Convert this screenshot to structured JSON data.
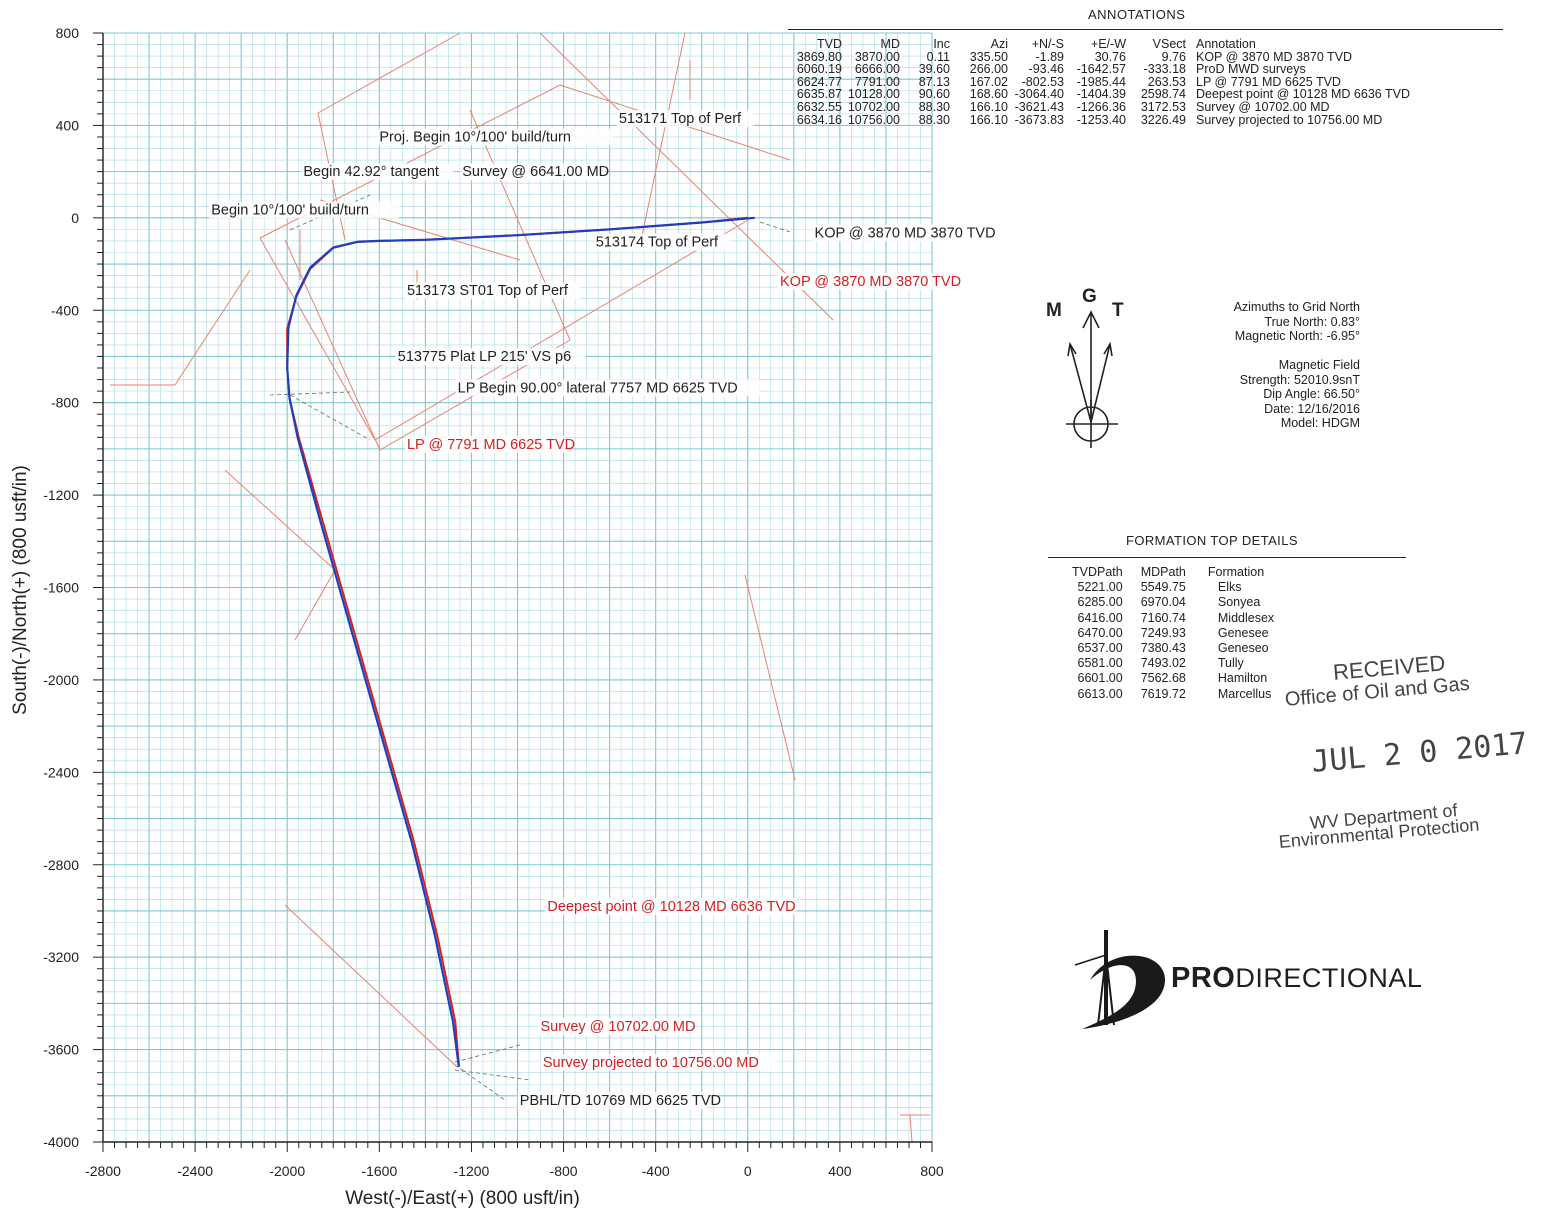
{
  "chart_data": {
    "type": "line",
    "title": "",
    "xlabel": "West(-)/East(+) (800 usft/in)",
    "ylabel": "South(-)/North(+) (800 usft/in)",
    "xlim": [
      -2800,
      800
    ],
    "ylim": [
      -4000,
      800
    ],
    "xticks": [
      -2800,
      -2400,
      -2000,
      -1600,
      -1200,
      -800,
      -400,
      0,
      400,
      800
    ],
    "yticks": [
      800,
      400,
      0,
      -400,
      -800,
      -1200,
      -1600,
      -2000,
      -2400,
      -2800,
      -3200,
      -3600,
      -4000
    ],
    "grid": true,
    "series": [
      {
        "color": "#d42020",
        "x": [
          0,
          -200,
          -600,
          -1000,
          -1400,
          -1600,
          -1700,
          -1800,
          -1900,
          -1960,
          -2000,
          -2000,
          -1990,
          -1950,
          -1850,
          -1750,
          -1650,
          -1550,
          -1450,
          -1350,
          -1270,
          -1254
        ],
        "y": [
          0,
          -20,
          -50,
          -75,
          -95,
          -100,
          -105,
          -130,
          -220,
          -340,
          -480,
          -650,
          -780,
          -950,
          -1300,
          -1650,
          -2000,
          -2350,
          -2700,
          -3100,
          -3480,
          -3674
        ]
      },
      {
        "color": "#1f3fbf",
        "x": [
          30,
          -200,
          -600,
          -1000,
          -1400,
          -1600,
          -1690,
          -1800,
          -1900,
          -1960,
          -1995,
          -2000,
          -1990,
          -1955,
          -1860,
          -1760,
          -1660,
          -1560,
          -1460,
          -1360,
          -1280,
          -1255
        ],
        "y": [
          0,
          -20,
          -50,
          -75,
          -95,
          -100,
          -103,
          -128,
          -215,
          -335,
          -475,
          -650,
          -780,
          -950,
          -1300,
          -1650,
          -2000,
          -2350,
          -2700,
          -3100,
          -3480,
          -3674
        ]
      }
    ],
    "annotations": [
      {
        "text": "Proj. Begin 10°/100' build/turn",
        "x": -1600,
        "y": 330,
        "color": "#222222"
      },
      {
        "text": "Begin 42.92° tangent",
        "x": -1930,
        "y": 180,
        "color": "#222222"
      },
      {
        "text": "Survey @ 6641.00 MD",
        "x": -1240,
        "y": 180,
        "color": "#222222"
      },
      {
        "text": "Begin 10°/100' build/turn",
        "x": -2330,
        "y": 15,
        "color": "#222222"
      },
      {
        "text": "513171 Top of Perf",
        "x": -560,
        "y": 410,
        "color": "#222222"
      },
      {
        "text": "513174 Top of Perf",
        "x": -660,
        "y": -125,
        "color": "#222222"
      },
      {
        "text": "KOP @ 3870 MD 3870 TVD",
        "x": 290,
        "y": -85,
        "color": "#222222"
      },
      {
        "text": "KOP @ 3870 MD 3870 TVD",
        "x": 140,
        "y": -295,
        "color": "#d42020"
      },
      {
        "text": "513173 ST01 Top of Perf",
        "x": -1480,
        "y": -335,
        "color": "#222222"
      },
      {
        "text": "513775 Plat LP 215' VS p6",
        "x": -1520,
        "y": -620,
        "color": "#222222"
      },
      {
        "text": "LP Begin 90.00° lateral 7757 MD 6625 TVD",
        "x": -1260,
        "y": -755,
        "color": "#222222"
      },
      {
        "text": "LP @ 7791 MD 6625 TVD",
        "x": -1480,
        "y": -1000,
        "color": "#d42020"
      },
      {
        "text": "Deepest point @ 10128 MD 6636 TVD",
        "x": -870,
        "y": -3000,
        "color": "#d42020"
      },
      {
        "text": "Survey @ 10702.00 MD",
        "x": -900,
        "y": -3520,
        "color": "#d42020"
      },
      {
        "text": "Survey projected to 10756.00 MD",
        "x": -890,
        "y": -3675,
        "color": "#d42020"
      },
      {
        "text": "PBHL/TD 10769 MD 6625 TVD",
        "x": -990,
        "y": -3840,
        "color": "#222222"
      }
    ]
  },
  "annotations_table": {
    "title": "ANNOTATIONS",
    "headers": [
      "TVD",
      "MD",
      "Inc",
      "Azi",
      "+N/-S",
      "+E/-W",
      "VSect",
      "Annotation"
    ],
    "rows": [
      [
        "3869.80",
        "3870.00",
        "0.11",
        "335.50",
        "-1.89",
        "30.76",
        "9.76",
        "KOP @ 3870 MD 3870 TVD"
      ],
      [
        "6060.19",
        "6666.00",
        "39.60",
        "266.00",
        "-93.46",
        "-1642.57",
        "-333.18",
        "ProD MWD surveys"
      ],
      [
        "6624.77",
        "7791.00",
        "87.13",
        "167.02",
        "-802.53",
        "-1985.44",
        "263.53",
        "LP @ 7791 MD 6625 TVD"
      ],
      [
        "6635.87",
        "10128.00",
        "90.60",
        "168.60",
        "-3064.40",
        "-1404.39",
        "2598.74",
        "Deepest point @ 10128 MD 6636 TVD"
      ],
      [
        "6632.55",
        "10702.00",
        "88.30",
        "166.10",
        "-3621.43",
        "-1266.36",
        "3172.53",
        "Survey @ 10702.00 MD"
      ],
      [
        "6634.16",
        "10756.00",
        "88.30",
        "166.10",
        "-3673.83",
        "-1253.40",
        "3226.49",
        "Survey projected to 10756.00 MD"
      ]
    ]
  },
  "north_info": {
    "lines": [
      "Azimuths to Grid North",
      "True North: 0.83°",
      "Magnetic North: -6.95°",
      "",
      "Magnetic Field",
      "Strength: 52010.9snT",
      "Dip Angle: 66.50°",
      "Date: 12/16/2016",
      "Model: HDGM"
    ],
    "compass_labels": {
      "m": "M",
      "g": "G",
      "t": "T"
    }
  },
  "formation_table": {
    "title": "FORMATION TOP DETAILS",
    "headers": [
      "TVDPath",
      "MDPath",
      "Formation"
    ],
    "rows": [
      [
        "5221.00",
        "5549.75",
        "Elks"
      ],
      [
        "6285.00",
        "6970.04",
        "Sonyea"
      ],
      [
        "6416.00",
        "7160.74",
        "Middlesex"
      ],
      [
        "6470.00",
        "7249.93",
        "Genesee"
      ],
      [
        "6537.00",
        "7380.43",
        "Geneseo"
      ],
      [
        "6581.00",
        "7493.02",
        "Tully"
      ],
      [
        "6601.00",
        "7562.68",
        "Hamilton"
      ],
      [
        "6613.00",
        "7619.72",
        "Marcellus"
      ]
    ]
  },
  "stamp": {
    "line1": "RECEIVED",
    "line2": "Office of Oil and Gas",
    "date": "JUL 2 0 2017",
    "line3": "WV Department of",
    "line4": "Environmental Protection"
  },
  "logo": {
    "bold": "PRO",
    "rest": "DIRECTIONAL"
  },
  "colors": {
    "grid": "#a8dbe3",
    "grid_major": "#7fc8d4",
    "red": "#d42020",
    "blue": "#1f3fbf",
    "plat": "#e8836e"
  }
}
